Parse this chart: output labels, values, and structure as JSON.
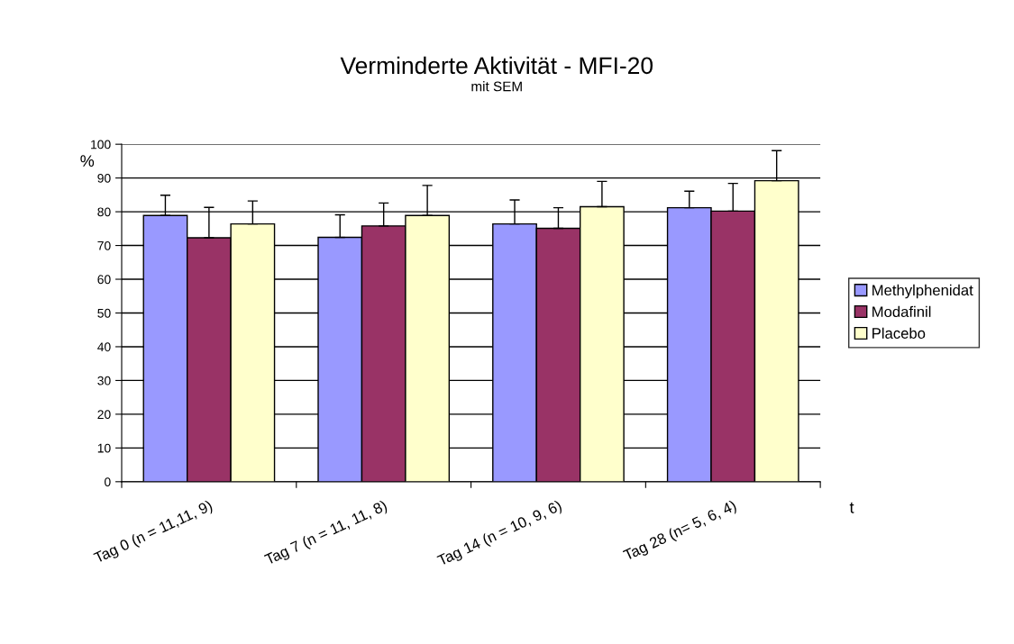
{
  "chart_data": {
    "type": "bar",
    "title": "Verminderte Aktivität - MFI-20",
    "subtitle": "mit SEM",
    "ylabel": "%",
    "xlabel": "t",
    "categories": [
      "Tag 0 (n = 11,11, 9)",
      "Tag 7 (n = 11, 11, 8)",
      "Tag 14 (n = 10, 9, 6)",
      "Tag 28 (n= 5, 6, 4)"
    ],
    "series": [
      {
        "name": "Methylphenidat",
        "color": "#9999ff",
        "values": [
          78.9,
          72.4,
          76.4,
          81.2
        ],
        "errors": [
          [
            78.9,
            84.9
          ],
          [
            72.4,
            79.1
          ],
          [
            76.4,
            83.5
          ],
          [
            81.2,
            86.1
          ]
        ]
      },
      {
        "name": "Modafinil",
        "color": "#993366",
        "values": [
          72.3,
          75.8,
          75.1,
          80.2
        ],
        "errors": [
          [
            72.3,
            81.3
          ],
          [
            75.8,
            82.6
          ],
          [
            75.1,
            81.2
          ],
          [
            80.2,
            88.4
          ]
        ]
      },
      {
        "name": "Placebo",
        "color": "#ffffcc",
        "values": [
          76.4,
          78.9,
          81.5,
          89.2
        ],
        "errors": [
          [
            76.4,
            83.2
          ],
          [
            78.9,
            87.8
          ],
          [
            81.5,
            89.0
          ],
          [
            89.2,
            98.1
          ]
        ]
      }
    ],
    "ylim": [
      0,
      100
    ],
    "yticks": [
      0,
      10,
      20,
      30,
      40,
      50,
      60,
      70,
      80,
      90,
      100
    ],
    "grid": "y",
    "legend": "right"
  }
}
